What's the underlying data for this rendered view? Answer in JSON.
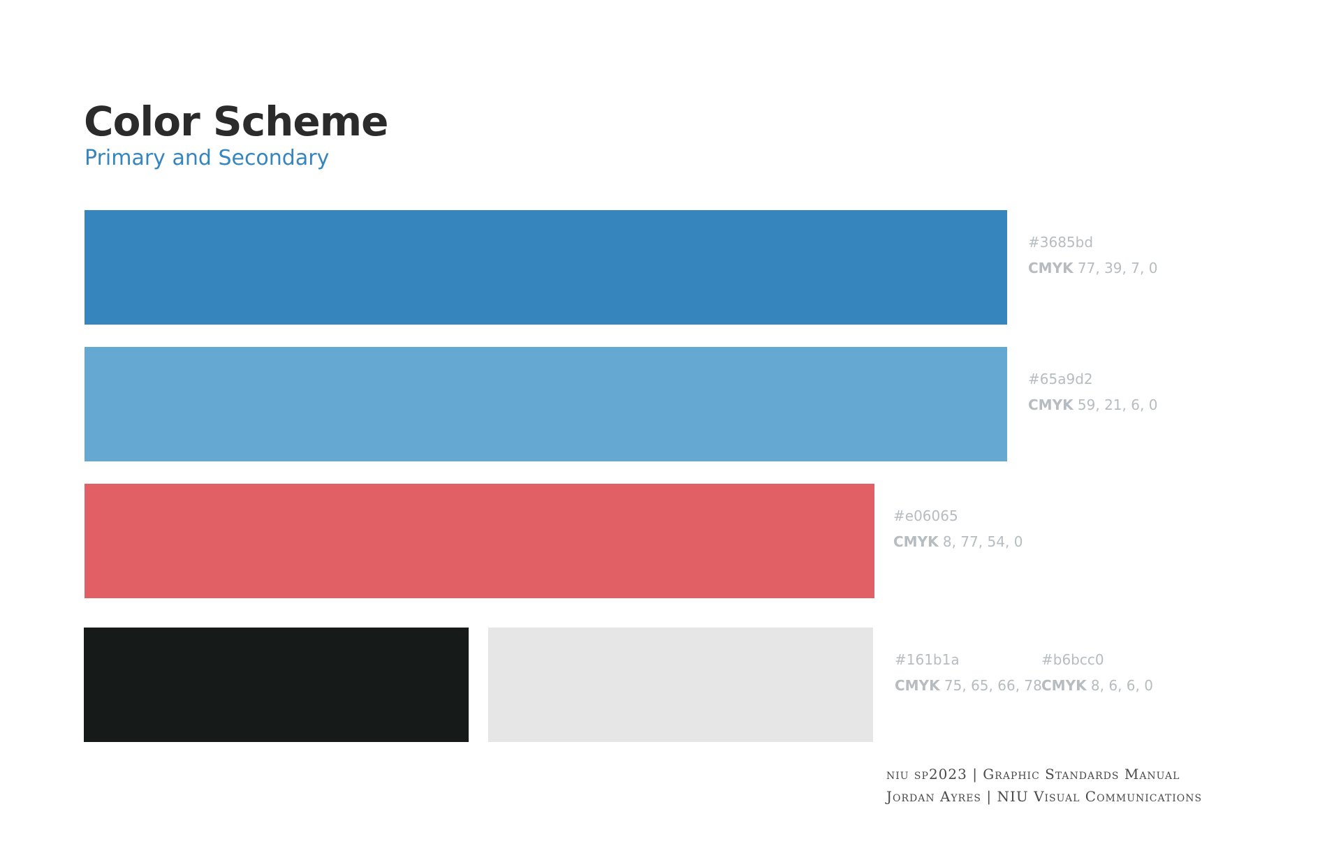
{
  "header": {
    "title": "Color Scheme",
    "subtitle": "Primary and Secondary"
  },
  "swatches": [
    {
      "name": "blue",
      "hex": "#3685bd",
      "cmyk_label": "CMYK",
      "cmyk_values": "77, 39, 7, 0"
    },
    {
      "name": "light-blue",
      "hex": "#65a9d2",
      "cmyk_label": "CMYK",
      "cmyk_values": "59, 21, 6, 0"
    },
    {
      "name": "red",
      "hex": "#e06065",
      "cmyk_label": "CMYK",
      "cmyk_values": "8, 77, 54, 0"
    },
    {
      "name": "black",
      "hex": "#161b1a",
      "cmyk_label": "CMYK",
      "cmyk_values": "75, 65, 66, 78"
    },
    {
      "name": "grey",
      "hex": "#b6bcc0",
      "cmyk_label": "CMYK",
      "cmyk_values": "8, 6, 6, 0"
    }
  ],
  "footer": {
    "line1": "niu sp2023 | Graphic Standards Manual",
    "line2": "Jordan Ayres | NIU Visual Communications"
  },
  "colors": {
    "title": "#2b2b2b",
    "subtitle": "#3685bd",
    "label": "#b6bcc0",
    "grey_swatch_fill": "#e6e6e6"
  }
}
